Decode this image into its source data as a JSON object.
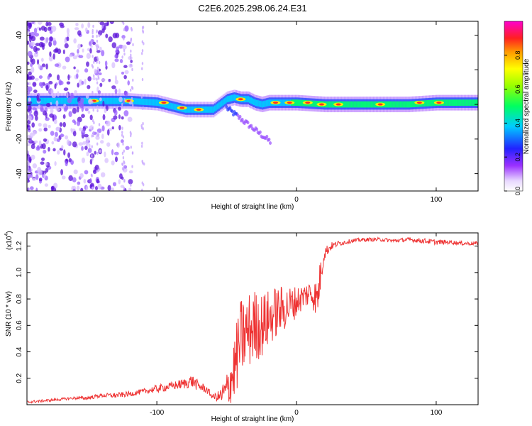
{
  "page_title": "C2E6.2025.298.06.24.E31",
  "chart_data": [
    {
      "type": "heatmap",
      "title": "C2E6.2025.298.06.24.E31",
      "xlabel": "Height of straight line (km)",
      "ylabel": "Frequency (Hz)",
      "xlim": [
        -193,
        130
      ],
      "ylim": [
        -50,
        48
      ],
      "xticks": [
        -100,
        0,
        100
      ],
      "xtick_labels": [
        "-100",
        "0",
        "100"
      ],
      "yticks": [
        -40,
        -20,
        0,
        20,
        40
      ],
      "ytick_labels": [
        "-40",
        "-20",
        "0",
        "20",
        "40"
      ],
      "colorbar": {
        "label": "Normalized spectral amplitude",
        "range": [
          0,
          1
        ],
        "ticks": [
          0,
          0.2,
          0.4,
          0.6,
          0.8
        ],
        "tick_labels": [
          "0.0",
          "0.2",
          "0.4",
          "0.6",
          "0.8"
        ]
      },
      "ridge": {
        "description_points_x": [
          -193,
          -160,
          -140,
          -120,
          -100,
          -90,
          -80,
          -70,
          -60,
          -55,
          -50,
          -45,
          -40,
          -35,
          -30,
          -25,
          -20,
          -10,
          0,
          20,
          50,
          80,
          100,
          130
        ],
        "frequency_hz": [
          2,
          2,
          2,
          2,
          1,
          -1,
          -3,
          -3,
          -3,
          0,
          3,
          4,
          3,
          3,
          1,
          0,
          1,
          1,
          1,
          0,
          0,
          0,
          1,
          1
        ]
      }
    },
    {
      "type": "line",
      "xlabel": "Height of straight line (km)",
      "ylabel": "SNR (10 * v/v)",
      "y_multiplier_label": "(x10",
      "y_multiplier_exp": "4",
      "y_multiplier_close": ")",
      "xlim": [
        -193,
        130
      ],
      "ylim": [
        0,
        1.3
      ],
      "xticks": [
        -100,
        0,
        100
      ],
      "xtick_labels": [
        "-100",
        "0",
        "100"
      ],
      "yticks": [
        0.2,
        0.4,
        0.6,
        0.8,
        1.0,
        1.2
      ],
      "ytick_labels": [
        "0.2",
        "0.4",
        "0.6",
        "0.8",
        "1.0",
        "1.2"
      ],
      "line_color": "#ee3333",
      "series": [
        {
          "name": "SNR",
          "x": [
            -193,
            -180,
            -170,
            -160,
            -150,
            -140,
            -130,
            -120,
            -110,
            -100,
            -90,
            -80,
            -75,
            -70,
            -65,
            -60,
            -55,
            -50,
            -45,
            -40,
            -35,
            -30,
            -25,
            -20,
            -15,
            -10,
            -5,
            0,
            5,
            10,
            15,
            18,
            20,
            25,
            30,
            40,
            50,
            60,
            70,
            80,
            90,
            100,
            110,
            120,
            130
          ],
          "y": [
            0.02,
            0.03,
            0.04,
            0.05,
            0.05,
            0.07,
            0.07,
            0.08,
            0.1,
            0.12,
            0.14,
            0.16,
            0.18,
            0.14,
            0.12,
            0.06,
            0.06,
            0.1,
            0.25,
            0.5,
            0.55,
            0.6,
            0.6,
            0.65,
            0.7,
            0.72,
            0.75,
            0.78,
            0.82,
            0.85,
            0.8,
            1.05,
            1.15,
            1.2,
            1.22,
            1.24,
            1.25,
            1.25,
            1.24,
            1.25,
            1.24,
            1.23,
            1.23,
            1.22,
            1.22
          ],
          "noise_amplitude": [
            0.01,
            0.01,
            0.01,
            0.01,
            0.015,
            0.015,
            0.02,
            0.02,
            0.02,
            0.03,
            0.03,
            0.04,
            0.05,
            0.04,
            0.03,
            0.02,
            0.05,
            0.15,
            0.25,
            0.3,
            0.3,
            0.28,
            0.25,
            0.22,
            0.2,
            0.18,
            0.15,
            0.12,
            0.1,
            0.1,
            0.15,
            0.12,
            0.05,
            0.03,
            0.02,
            0.015,
            0.015,
            0.015,
            0.015,
            0.015,
            0.02,
            0.02,
            0.015,
            0.015,
            0.015
          ]
        }
      ]
    }
  ]
}
